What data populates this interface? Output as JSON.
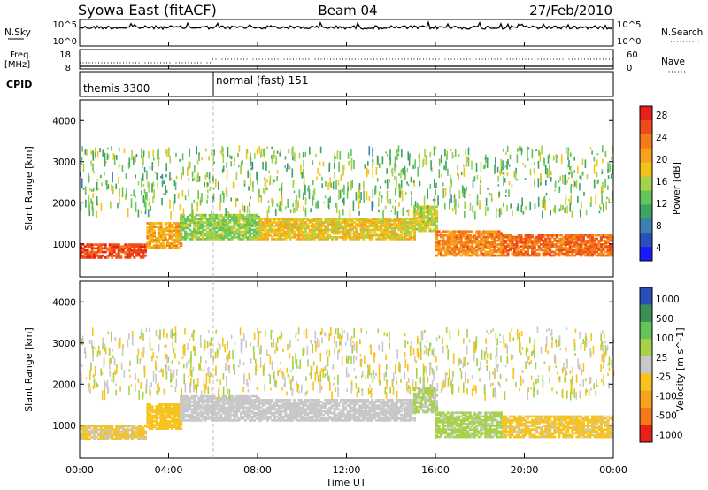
{
  "header": {
    "station": "Syowa East (fitACF)",
    "beam": "Beam 04",
    "date": "27/Feb/2010"
  },
  "noise_panel": {
    "left_label": "N.Sky",
    "left_ticks": [
      "10^5",
      "10^0"
    ],
    "right_label": "N.Search",
    "right_ticks": [
      "10^5",
      "10^0"
    ]
  },
  "freq_panel": {
    "left_label_1": "Freq.",
    "left_label_2": "[MHz]",
    "left_ticks": [
      "18",
      "8"
    ],
    "right_label": "Nave",
    "right_ticks": [
      "60",
      "0"
    ]
  },
  "cpid_panel": {
    "label": "CPID",
    "segments": [
      {
        "text": "themis 3300",
        "start_hour": 0,
        "end_hour": 6
      },
      {
        "text": "normal (fast) 151",
        "start_hour": 6,
        "end_hour": 24
      }
    ]
  },
  "x_axis": {
    "label": "Time UT",
    "tick_labels": [
      "00:00",
      "04:00",
      "08:00",
      "12:00",
      "16:00",
      "20:00",
      "00:00"
    ]
  },
  "colors": {
    "power_scale": [
      "#1a1aff",
      "#2a4fb8",
      "#3d7fae",
      "#3da463",
      "#63c45a",
      "#a6d24a",
      "#f2c419",
      "#f6a21e",
      "#f47a1c",
      "#ef4a1a",
      "#e8201a"
    ],
    "velocity_scale": [
      "#e8201a",
      "#f47a1c",
      "#f6a21e",
      "#f7c31f",
      "#c8c8c8",
      "#a6d24a",
      "#63c45a",
      "#3d8f5a",
      "#2a4fb8"
    ]
  },
  "chart_data": [
    {
      "type": "heatmap",
      "title": "Power",
      "xlabel": "Time UT",
      "ylabel": "Slant Range [km]",
      "xlim": [
        0,
        24
      ],
      "ylim": [
        200,
        4500
      ],
      "y_tick_labels": [
        "1000",
        "2000",
        "3000",
        "4000"
      ],
      "colorbar": {
        "label": "Power [dB]",
        "range": [
          0,
          30
        ],
        "tick_labels": [
          "4",
          "8",
          "12",
          "16",
          "20",
          "24",
          "28"
        ]
      },
      "echo_bands": [
        {
          "start_hour": 0.0,
          "end_hour": 3.0,
          "range_min_km": 650,
          "range_max_km": 1000,
          "power_db": 26
        },
        {
          "start_hour": 3.0,
          "end_hour": 4.5,
          "range_min_km": 900,
          "range_max_km": 1500,
          "power_db": 20
        },
        {
          "start_hour": 4.5,
          "end_hour": 8.0,
          "range_min_km": 1100,
          "range_max_km": 1700,
          "power_db": 14
        },
        {
          "start_hour": 8.0,
          "end_hour": 15.0,
          "range_min_km": 1100,
          "range_max_km": 1600,
          "power_db": 18
        },
        {
          "start_hour": 15.0,
          "end_hour": 16.0,
          "range_min_km": 1300,
          "range_max_km": 1900,
          "power_db": 16
        },
        {
          "start_hour": 16.0,
          "end_hour": 19.0,
          "range_min_km": 700,
          "range_max_km": 1300,
          "power_db": 22
        },
        {
          "start_hour": 19.0,
          "end_hour": 24.0,
          "range_min_km": 700,
          "range_max_km": 1200,
          "power_db": 24
        }
      ]
    },
    {
      "type": "heatmap",
      "title": "Velocity",
      "xlabel": "Time UT",
      "ylabel": "Slant Range [km]",
      "xlim": [
        0,
        24
      ],
      "ylim": [
        200,
        4500
      ],
      "y_tick_labels": [
        "1000",
        "2000",
        "3000",
        "4000"
      ],
      "colorbar": {
        "label": "Velocity [m s^-1]",
        "range": [
          -1200,
          1200
        ],
        "tick_labels": [
          "1000",
          "500",
          "100",
          "25",
          "-25",
          "-100",
          "-500",
          "-1000"
        ]
      },
      "echo_bands": [
        {
          "start_hour": 0.0,
          "end_hour": 3.0,
          "range_min_km": 650,
          "range_max_km": 1000,
          "velocity": -150
        },
        {
          "start_hour": 3.0,
          "end_hour": 4.5,
          "range_min_km": 900,
          "range_max_km": 1500,
          "velocity": -300
        },
        {
          "start_hour": 4.5,
          "end_hour": 8.0,
          "range_min_km": 1100,
          "range_max_km": 1700,
          "velocity": 0
        },
        {
          "start_hour": 8.0,
          "end_hour": 15.0,
          "range_min_km": 1100,
          "range_max_km": 1600,
          "velocity": 0
        },
        {
          "start_hour": 15.0,
          "end_hour": 16.0,
          "range_min_km": 1300,
          "range_max_km": 1900,
          "velocity": 150
        },
        {
          "start_hour": 16.0,
          "end_hour": 19.0,
          "range_min_km": 700,
          "range_max_km": 1300,
          "velocity": 200
        },
        {
          "start_hour": 19.0,
          "end_hour": 24.0,
          "range_min_km": 700,
          "range_max_km": 1200,
          "velocity": -200
        }
      ]
    }
  ]
}
